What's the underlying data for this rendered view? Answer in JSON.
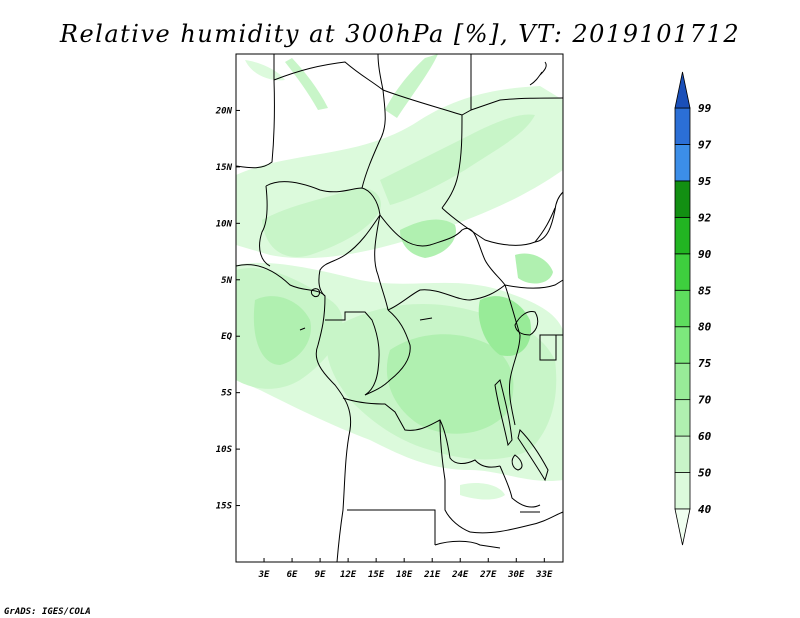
{
  "title": "Relative humidity at 300hPa [%], VT: 2019101712",
  "credit": "GrADS: IGES/COLA",
  "map": {
    "lat_labels": [
      "20N",
      "15N",
      "10N",
      "5N",
      "EQ",
      "5S",
      "10S",
      "15S"
    ],
    "lat_values": [
      20,
      15,
      10,
      5,
      0,
      -5,
      -10,
      -15
    ],
    "lon_labels": [
      "3E",
      "6E",
      "9E",
      "12E",
      "15E",
      "18E",
      "21E",
      "24E",
      "27E",
      "30E",
      "33E"
    ],
    "lon_values": [
      3,
      6,
      9,
      12,
      15,
      18,
      21,
      24,
      27,
      30,
      33
    ],
    "lon_range": [
      0,
      35
    ],
    "lat_range": [
      -20,
      25
    ]
  },
  "colorbar": {
    "levels": [
      "40",
      "50",
      "60",
      "70",
      "75",
      "80",
      "85",
      "90",
      "92",
      "95",
      "97",
      "99"
    ],
    "colors": [
      "#f0fff0",
      "#dcfadc",
      "#c8f5c8",
      "#b0f0b0",
      "#98eb98",
      "#7de87d",
      "#5edd5e",
      "#3ecf3e",
      "#22b522",
      "#128f12",
      "#3c8ee8",
      "#2b6fd6",
      "#1a4fb8"
    ]
  }
}
